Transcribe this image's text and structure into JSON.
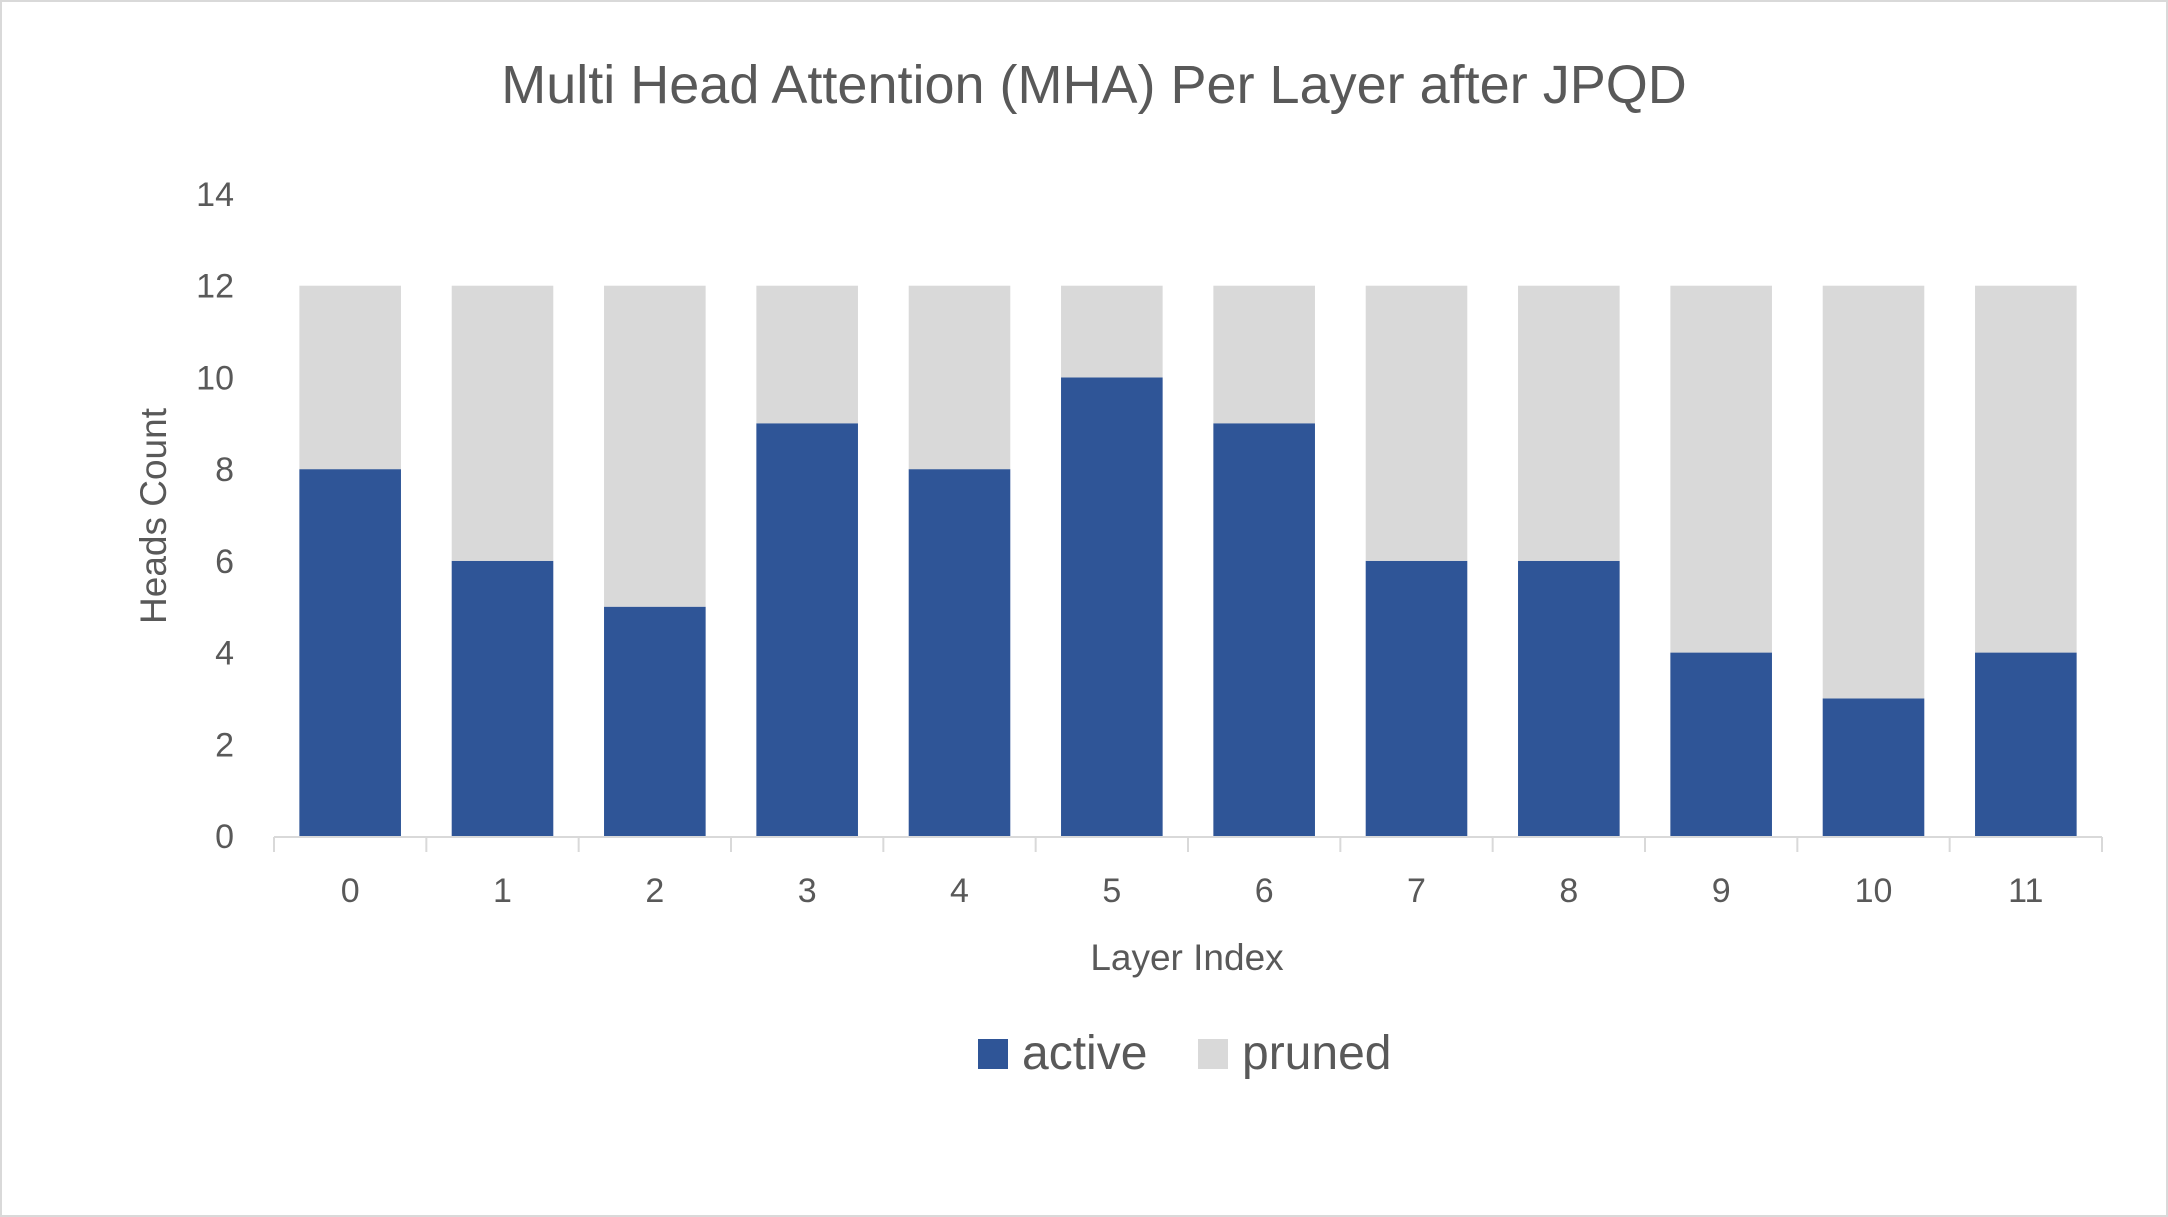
{
  "chart_data": {
    "type": "bar",
    "stacked": true,
    "title": "Multi Head Attention (MHA) Per Layer after JPQD",
    "xlabel": "Layer Index",
    "ylabel": "Heads Count",
    "categories": [
      "0",
      "1",
      "2",
      "3",
      "4",
      "5",
      "6",
      "7",
      "8",
      "9",
      "10",
      "11"
    ],
    "series": [
      {
        "name": "active",
        "color": "#2f5597",
        "values": [
          8,
          6,
          5,
          9,
          8,
          10,
          9,
          6,
          6,
          4,
          3,
          4
        ]
      },
      {
        "name": "pruned",
        "color": "#d9d9d9",
        "values": [
          4,
          6,
          7,
          3,
          4,
          2,
          3,
          6,
          6,
          8,
          9,
          8
        ]
      }
    ],
    "ylim": [
      0,
      14
    ],
    "yticks": [
      0,
      2,
      4,
      6,
      8,
      10,
      12,
      14
    ],
    "grid": false,
    "legend_position": "bottom"
  }
}
